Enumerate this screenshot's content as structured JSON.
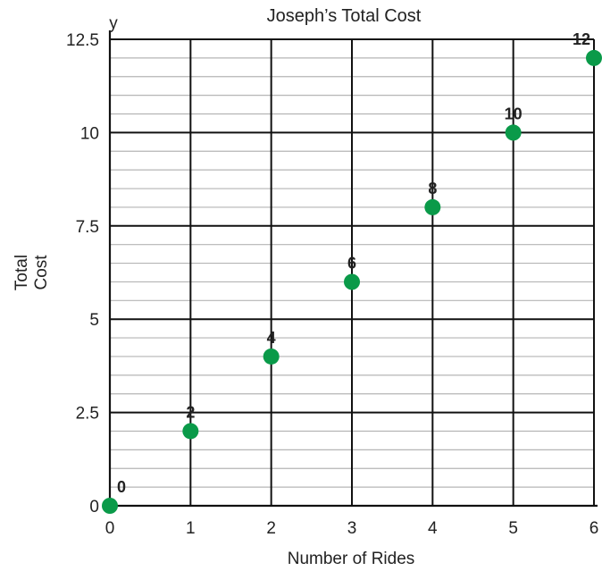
{
  "chart_data": {
    "type": "scatter",
    "title": "Joseph’s Total Cost",
    "xlabel": "Number of Rides",
    "ylabel": [
      "Total",
      "Cost"
    ],
    "x_axis_letter": "x",
    "y_axis_letter": "y",
    "xlim": [
      0,
      6
    ],
    "ylim": [
      0,
      12.5
    ],
    "x_ticks": [
      "0",
      "1",
      "2",
      "3",
      "4",
      "5",
      "6"
    ],
    "y_ticks": [
      "0",
      "2.5",
      "5",
      "7.5",
      "10",
      "12.5"
    ],
    "grid": true,
    "marker_color": "#0a9a49",
    "series": [
      {
        "x": [
          0,
          1,
          2,
          3,
          4,
          5,
          6
        ],
        "y": [
          0,
          2,
          4,
          6,
          8,
          10,
          12
        ],
        "labels": [
          "0",
          "2",
          "4",
          "6",
          "8",
          "10",
          "12"
        ]
      }
    ]
  }
}
